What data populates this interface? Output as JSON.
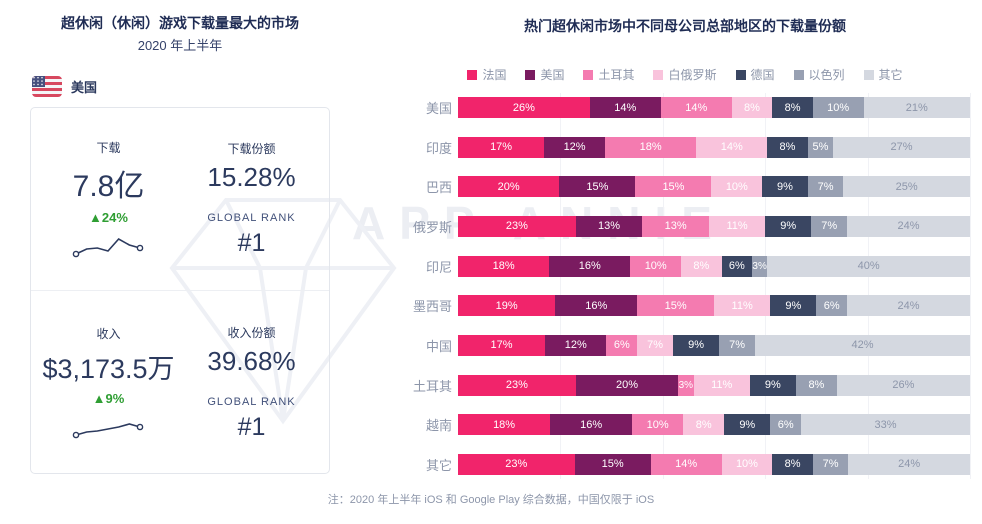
{
  "left_panel": {
    "title": "超休闲（休闲）游戏下载量最大的市场",
    "subtitle": "2020 年上半年",
    "country_label": "美国",
    "download": {
      "label": "下载",
      "value": "7.8亿",
      "change": "▲24%",
      "share_label": "下载份额",
      "share_value": "15.28%",
      "rank_label": "GLOBAL RANK",
      "rank_value": "#1",
      "trend": [
        20,
        15,
        14,
        17,
        5,
        11,
        14
      ]
    },
    "revenue": {
      "label": "收入",
      "value": "$3,173.5万",
      "change": "▲9%",
      "share_label": "收入份额",
      "share_value": "39.68%",
      "rank_label": "GLOBAL RANK",
      "rank_value": "#1",
      "trend": [
        20,
        17,
        16,
        14,
        12,
        9,
        12
      ]
    }
  },
  "chart_data": {
    "type": "bar",
    "stacked": true,
    "orientation": "horizontal",
    "unit": "%",
    "title": "热门超休闲市场中不同母公司总部地区的下载量份额",
    "legend_position": "top",
    "value_labels": "inside",
    "xlim": [
      0,
      100
    ],
    "grid": true,
    "categories": [
      "美国",
      "印度",
      "巴西",
      "俄罗斯",
      "印尼",
      "墨西哥",
      "中国",
      "土耳其",
      "越南",
      "其它"
    ],
    "series": [
      {
        "name": "法国",
        "color": "#F1246B",
        "values": [
          26,
          17,
          20,
          23,
          18,
          19,
          17,
          23,
          18,
          23
        ]
      },
      {
        "name": "美国",
        "color": "#7A1B60",
        "values": [
          14,
          12,
          15,
          13,
          16,
          16,
          12,
          20,
          16,
          15
        ]
      },
      {
        "name": "土耳其",
        "color": "#F47BB0",
        "values": [
          14,
          18,
          15,
          13,
          10,
          15,
          6,
          3,
          10,
          14
        ]
      },
      {
        "name": "白俄罗斯",
        "color": "#F9C3DC",
        "values": [
          8,
          14,
          10,
          11,
          8,
          11,
          7,
          11,
          8,
          10
        ]
      },
      {
        "name": "德国",
        "color": "#3A4662",
        "values": [
          8,
          8,
          9,
          9,
          6,
          9,
          9,
          9,
          9,
          8
        ]
      },
      {
        "name": "以色列",
        "color": "#98A0B2",
        "values": [
          10,
          5,
          7,
          7,
          3,
          6,
          7,
          8,
          6,
          7
        ]
      },
      {
        "name": "其它",
        "color": "#D4D8E0",
        "values": [
          21,
          27,
          25,
          24,
          40,
          24,
          42,
          26,
          33,
          24
        ]
      }
    ]
  },
  "note": "注：2020 年上半年 iOS 和 Google Play 综合数据，中国仅限于 iOS",
  "watermark": "APP ANNIE",
  "colors": {
    "title": "#1F2C54",
    "navy": "#2C3A5E",
    "muted": "#8D96AA",
    "green": "#2F9E33",
    "other_segment_text": "#8D96AA",
    "watermark": "#ECEEF3",
    "card_border": "#E3E6EC",
    "gridline": "#F1F2F6"
  }
}
